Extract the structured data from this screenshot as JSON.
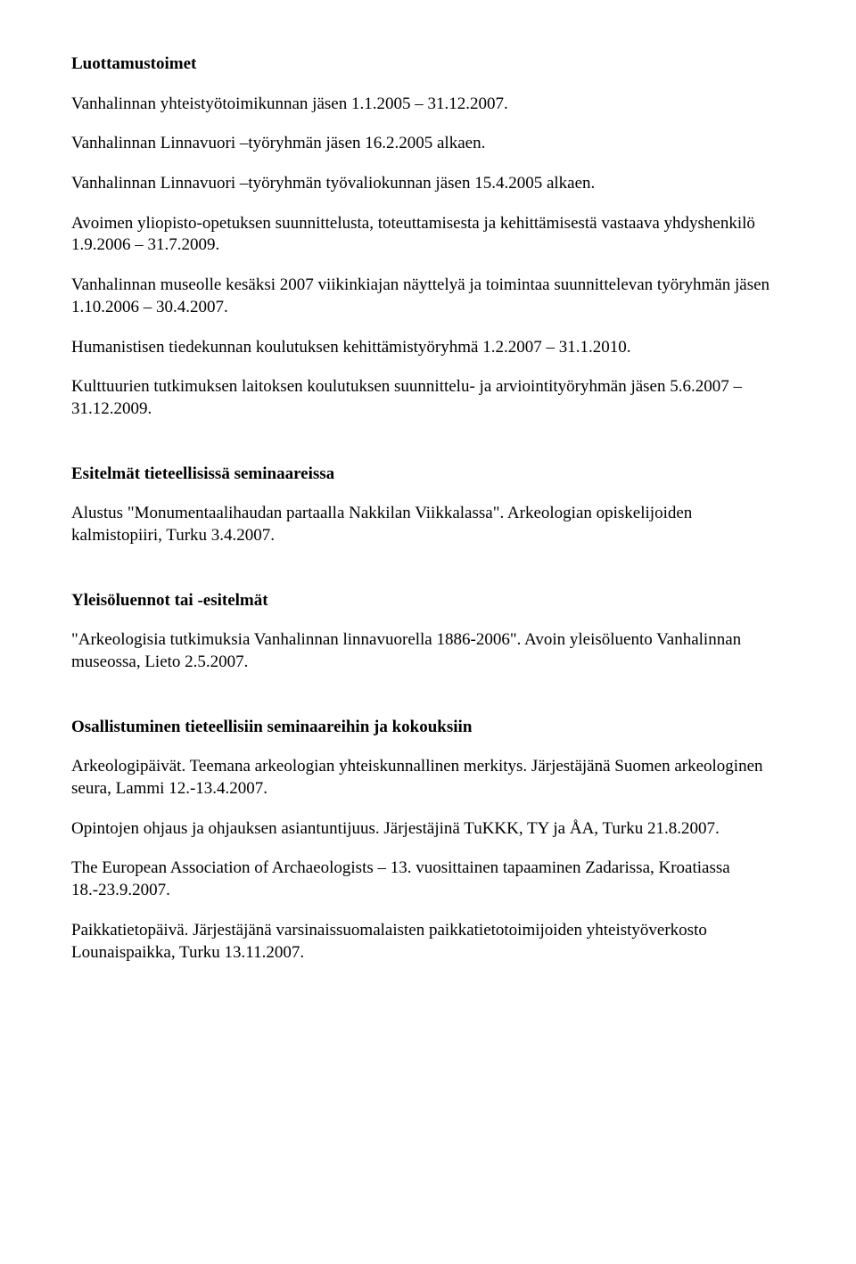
{
  "sections": {
    "luottamustoimet": {
      "heading": "Luottamustoimet",
      "p1": "Vanhalinnan yhteistyötoimikunnan jäsen 1.1.2005 – 31.12.2007.",
      "p2": "Vanhalinnan Linnavuori –työryhmän jäsen 16.2.2005 alkaen.",
      "p3": "Vanhalinnan Linnavuori –työryhmän työvaliokunnan jäsen 15.4.2005 alkaen.",
      "p4": "Avoimen yliopisto-opetuksen suunnittelusta, toteuttamisesta ja kehittämisestä vastaava yhdyshenkilö 1.9.2006 – 31.7.2009.",
      "p5": "Vanhalinnan museolle kesäksi 2007 viikinkiajan näyttelyä ja toimintaa suunnittelevan työryhmän jäsen 1.10.2006 – 30.4.2007.",
      "p6": "Humanistisen tiedekunnan koulutuksen kehittämistyöryhmä 1.2.2007 – 31.1.2010.",
      "p7": "Kulttuurien tutkimuksen laitoksen koulutuksen suunnittelu- ja arviointityöryhmän jäsen 5.6.2007 – 31.12.2009."
    },
    "esitelmat": {
      "heading": "Esitelmät tieteellisissä seminaareissa",
      "p1": "Alustus \"Monumentaalihaudan partaalla Nakkilan Viikkalassa\". Arkeologian opiskelijoiden kalmistopiiri, Turku 3.4.2007."
    },
    "yleisoluennot": {
      "heading": "Yleisöluennot tai -esitelmät",
      "p1": "\"Arkeologisia tutkimuksia Vanhalinnan linnavuorella 1886-2006\". Avoin yleisöluento Vanhalinnan museossa, Lieto 2.5.2007."
    },
    "osallistuminen": {
      "heading": "Osallistuminen tieteellisiin seminaareihin ja kokouksiin",
      "p1": "Arkeologipäivät. Teemana arkeologian yhteiskunnallinen merkitys. Järjestäjänä Suomen arkeologinen seura, Lammi 12.-13.4.2007.",
      "p2": "Opintojen ohjaus ja ohjauksen asiantuntijuus. Järjestäjinä TuKKK, TY ja ÅA, Turku 21.8.2007.",
      "p3": "The European Association of Archaeologists – 13. vuosittainen tapaaminen Zadarissa, Kroatiassa 18.-23.9.2007.",
      "p4": "Paikkatietopäivä. Järjestäjänä varsinaissuomalaisten paikkatietotoimijoiden yhteistyöverkosto Lounaispaikka, Turku 13.11.2007."
    }
  }
}
